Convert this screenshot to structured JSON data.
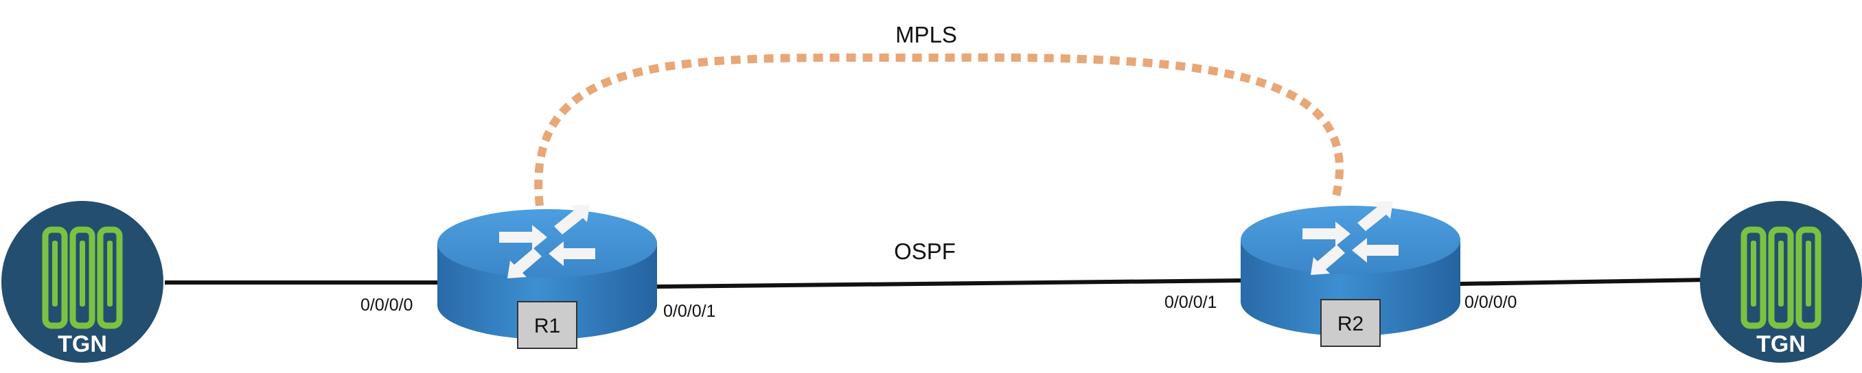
{
  "protocols": {
    "mpls": "MPLS",
    "ospf": "OSPF"
  },
  "devices": {
    "tgn_left": {
      "label": "TGN",
      "icon": "traffic-generator-icon"
    },
    "r1": {
      "label": "R1",
      "icon": "router-icon"
    },
    "r2": {
      "label": "R2",
      "icon": "router-icon"
    },
    "tgn_right": {
      "label": "TGN",
      "icon": "traffic-generator-icon"
    }
  },
  "interfaces": {
    "r1_left": "0/0/0/0",
    "r1_right": "0/0/0/1",
    "r2_left": "0/0/0/1",
    "r2_right": "0/0/0/0"
  },
  "colors": {
    "tgn_circle": "#244e6f",
    "tgn_bars": "#7cc242",
    "router_top": "#3f8fd0",
    "router_side": "#2c6fb0",
    "router_label_box": "#cccccc",
    "mpls_path": "#e8a777",
    "link": "#111111"
  }
}
